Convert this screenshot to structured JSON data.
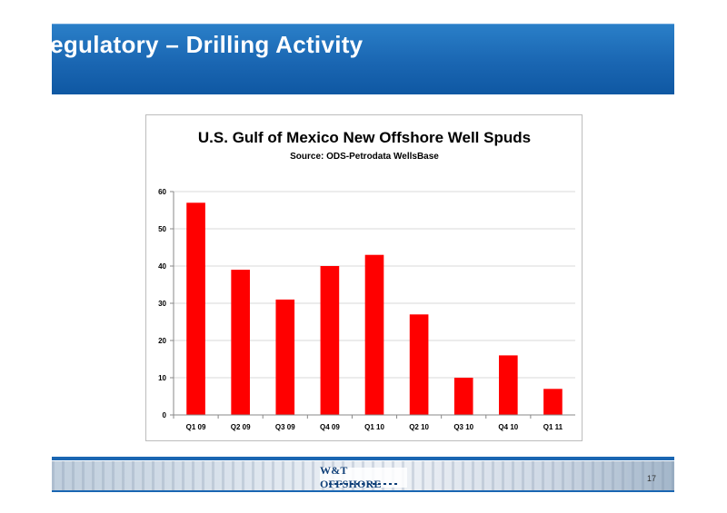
{
  "slide": {
    "title": "Regulatory – Drilling Activity",
    "page_number": "17",
    "logo_text": "W&T OFFSHORE"
  },
  "colors": {
    "header_blue": "#1a66b2",
    "bar_red": "#ff0000",
    "gridline": "#d9d9d9"
  },
  "chart_data": {
    "type": "bar",
    "title": "U.S. Gulf of Mexico New Offshore Well Spuds",
    "subtitle": "Source: ODS-Petrodata WellsBase",
    "categories": [
      "Q1 09",
      "Q2 09",
      "Q3 09",
      "Q4 09",
      "Q1 10",
      "Q2 10",
      "Q3 10",
      "Q4 10",
      "Q1 11"
    ],
    "values": [
      57,
      39,
      31,
      40,
      43,
      27,
      10,
      16,
      7
    ],
    "ylim": [
      0,
      60
    ],
    "yticks": [
      0,
      10,
      20,
      30,
      40,
      50,
      60
    ],
    "grid": true,
    "legend": "none"
  }
}
